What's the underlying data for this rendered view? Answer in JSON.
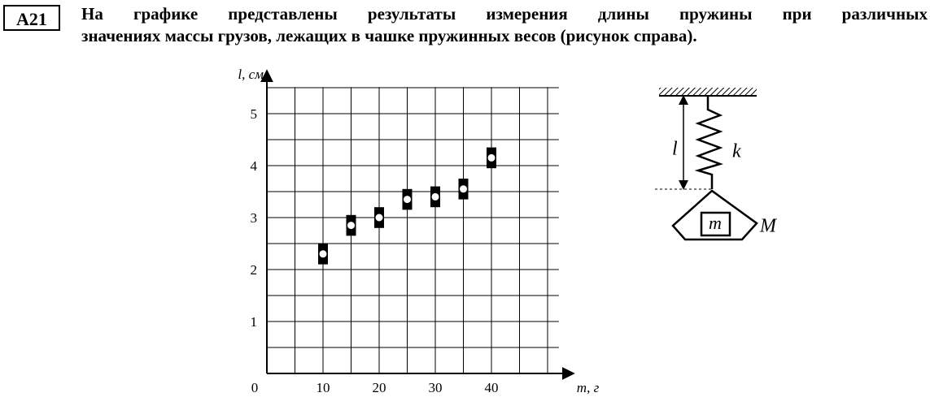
{
  "problem": {
    "number": "A21",
    "lines": [
      "На графике представлены результаты измерения длины пружины при различных",
      "значениях массы грузов, лежащих в чашке пружинных весов (рисунок справа)."
    ]
  },
  "chart_data": {
    "type": "scatter",
    "xlabel": "m, г",
    "ylabel": "l, см",
    "x": [
      10,
      15,
      20,
      25,
      30,
      35,
      40
    ],
    "values": [
      2.3,
      2.85,
      3.0,
      3.35,
      3.4,
      3.55,
      4.15
    ],
    "errors": [
      0.2,
      0.2,
      0.2,
      0.2,
      0.2,
      0.2,
      0.2
    ],
    "color": "#000000",
    "xlim": [
      0,
      52
    ],
    "ylim": [
      0,
      5.7
    ],
    "xticks": [
      0,
      10,
      20,
      30,
      40
    ],
    "yticks": [
      1,
      2,
      3,
      4,
      5
    ],
    "grid_x": [
      5,
      10,
      15,
      20,
      25,
      30,
      35,
      40,
      45,
      50
    ],
    "grid_y": [
      0.5,
      1,
      1.5,
      2,
      2.5,
      3,
      3.5,
      4,
      4.5,
      5,
      5.5
    ],
    "grid": true
  },
  "figure": {
    "length": "l",
    "stiffness": "k",
    "mass": "m",
    "pan": "M"
  }
}
